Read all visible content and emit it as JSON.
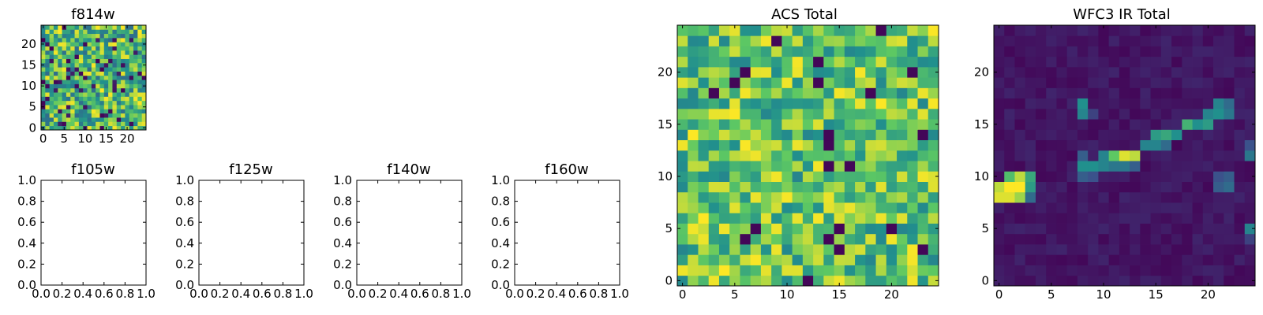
{
  "figure": {
    "background": "#ffffff"
  },
  "colormap": {
    "name": "viridis",
    "stops": [
      "#440154",
      "#3b528b",
      "#21908d",
      "#5dc863",
      "#fde725"
    ]
  },
  "chart_data": [
    {
      "id": "f814w",
      "type": "heatmap",
      "title": "f814w",
      "grid_size": 25,
      "xticks": [
        "0",
        "5",
        "10",
        "15",
        "20"
      ],
      "yticks": [
        "0",
        "5",
        "10",
        "15",
        "20"
      ],
      "values_pattern": "noise",
      "seed": 814
    },
    {
      "id": "f105w",
      "type": "empty",
      "title": "f105w",
      "xticks": [
        "0.0",
        "0.2",
        "0.4",
        "0.6",
        "0.8",
        "1.0"
      ],
      "yticks": [
        "0.0",
        "0.2",
        "0.4",
        "0.6",
        "0.8",
        "1.0"
      ]
    },
    {
      "id": "f125w",
      "type": "empty",
      "title": "f125w",
      "xticks": [
        "0.0",
        "0.2",
        "0.4",
        "0.6",
        "0.8",
        "1.0"
      ],
      "yticks": [
        "0.0",
        "0.2",
        "0.4",
        "0.6",
        "0.8",
        "1.0"
      ]
    },
    {
      "id": "f140w",
      "type": "empty",
      "title": "f140w",
      "xticks": [
        "0.0",
        "0.2",
        "0.4",
        "0.6",
        "0.8",
        "1.0"
      ],
      "yticks": [
        "0.0",
        "0.2",
        "0.4",
        "0.6",
        "0.8",
        "1.0"
      ]
    },
    {
      "id": "f160w",
      "type": "empty",
      "title": "f160w",
      "xticks": [
        "0.0",
        "0.2",
        "0.4",
        "0.6",
        "0.8",
        "1.0"
      ],
      "yticks": [
        "0.0",
        "0.2",
        "0.4",
        "0.6",
        "0.8",
        "1.0"
      ]
    },
    {
      "id": "acs",
      "type": "heatmap",
      "title": "ACS Total",
      "grid_size": 25,
      "xticks": [
        "0",
        "5",
        "10",
        "15",
        "20"
      ],
      "yticks": [
        "0",
        "5",
        "10",
        "15",
        "20"
      ],
      "values_pattern": "noise_high",
      "seed": 4242
    },
    {
      "id": "wfc3",
      "type": "heatmap",
      "title": "WFC3 IR Total",
      "grid_size": 25,
      "xticks": [
        "0",
        "5",
        "10",
        "15",
        "20"
      ],
      "yticks": [
        "0",
        "5",
        "10",
        "15",
        "20"
      ],
      "values_pattern": "sparse",
      "seed": 160,
      "hot_cells": [
        {
          "x": 0,
          "y": 8,
          "v": 0.95
        },
        {
          "x": 1,
          "y": 8,
          "v": 0.95
        },
        {
          "x": 2,
          "y": 8,
          "v": 0.85
        },
        {
          "x": 0,
          "y": 9,
          "v": 0.9
        },
        {
          "x": 1,
          "y": 9,
          "v": 1.0
        },
        {
          "x": 2,
          "y": 9,
          "v": 1.0
        },
        {
          "x": 3,
          "y": 9,
          "v": 0.55
        },
        {
          "x": 1,
          "y": 10,
          "v": 0.7
        },
        {
          "x": 2,
          "y": 10,
          "v": 0.9
        },
        {
          "x": 3,
          "y": 10,
          "v": 0.6
        },
        {
          "x": 3,
          "y": 8,
          "v": 0.35
        },
        {
          "x": 8,
          "y": 11,
          "v": 0.5
        },
        {
          "x": 9,
          "y": 11,
          "v": 0.5
        },
        {
          "x": 10,
          "y": 11,
          "v": 0.45
        },
        {
          "x": 11,
          "y": 11,
          "v": 0.4
        },
        {
          "x": 8,
          "y": 10,
          "v": 0.3
        },
        {
          "x": 9,
          "y": 10,
          "v": 0.25
        },
        {
          "x": 8,
          "y": 12,
          "v": 0.3
        },
        {
          "x": 10,
          "y": 12,
          "v": 0.45
        },
        {
          "x": 11,
          "y": 12,
          "v": 0.75
        },
        {
          "x": 12,
          "y": 12,
          "v": 0.95
        },
        {
          "x": 13,
          "y": 12,
          "v": 0.9
        },
        {
          "x": 12,
          "y": 11,
          "v": 0.4
        },
        {
          "x": 13,
          "y": 11,
          "v": 0.3
        },
        {
          "x": 14,
          "y": 13,
          "v": 0.45
        },
        {
          "x": 15,
          "y": 13,
          "v": 0.45
        },
        {
          "x": 16,
          "y": 13,
          "v": 0.35
        },
        {
          "x": 15,
          "y": 14,
          "v": 0.55
        },
        {
          "x": 16,
          "y": 14,
          "v": 0.6
        },
        {
          "x": 17,
          "y": 14,
          "v": 0.5
        },
        {
          "x": 18,
          "y": 15,
          "v": 0.65
        },
        {
          "x": 19,
          "y": 15,
          "v": 0.5
        },
        {
          "x": 20,
          "y": 15,
          "v": 0.55
        },
        {
          "x": 20,
          "y": 16,
          "v": 0.45
        },
        {
          "x": 21,
          "y": 16,
          "v": 0.5
        },
        {
          "x": 22,
          "y": 16,
          "v": 0.4
        },
        {
          "x": 21,
          "y": 17,
          "v": 0.45
        },
        {
          "x": 22,
          "y": 17,
          "v": 0.35
        },
        {
          "x": 8,
          "y": 16,
          "v": 0.45
        },
        {
          "x": 8,
          "y": 17,
          "v": 0.5
        },
        {
          "x": 9,
          "y": 16,
          "v": 0.2
        },
        {
          "x": 21,
          "y": 9,
          "v": 0.3
        },
        {
          "x": 22,
          "y": 9,
          "v": 0.35
        },
        {
          "x": 21,
          "y": 10,
          "v": 0.25
        },
        {
          "x": 22,
          "y": 10,
          "v": 0.3
        },
        {
          "x": 24,
          "y": 12,
          "v": 0.4
        },
        {
          "x": 24,
          "y": 13,
          "v": 0.25
        },
        {
          "x": 24,
          "y": 5,
          "v": 0.45
        },
        {
          "x": 24,
          "y": 4,
          "v": 0.2
        }
      ]
    }
  ]
}
